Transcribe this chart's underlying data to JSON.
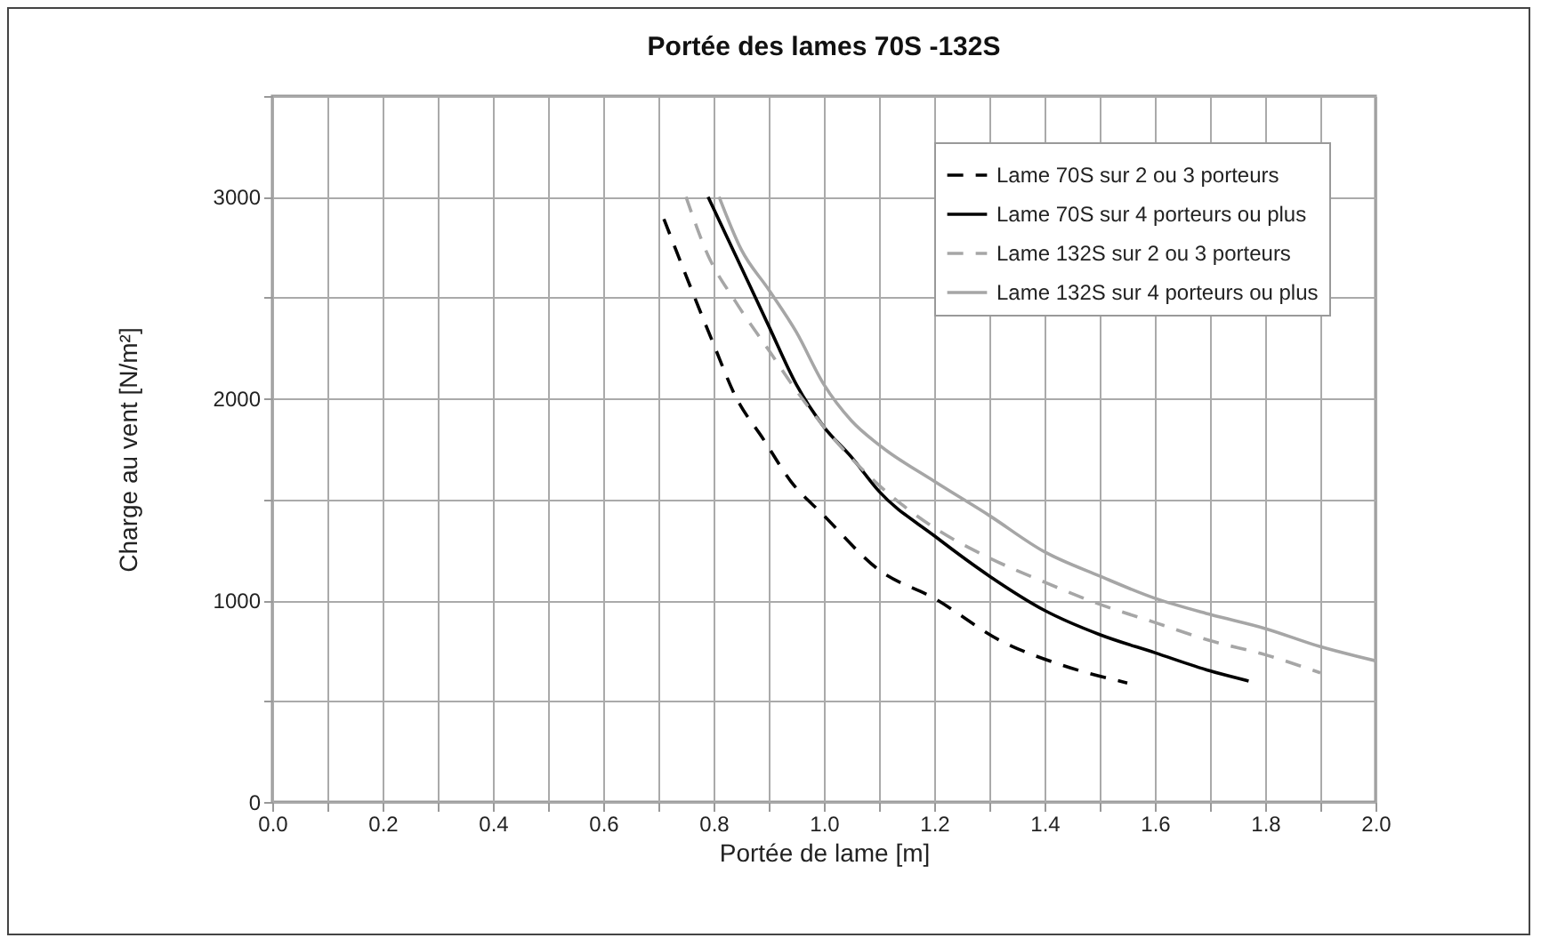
{
  "chart_data": {
    "type": "line",
    "title": "Portée des lames 70S -132S",
    "xlabel": "Portée de lame [m]",
    "ylabel": "Charge au vent [N/m²]",
    "xlim": [
      0,
      2
    ],
    "ylim": [
      0,
      3500
    ],
    "xticks": [
      {
        "value": 0,
        "label": "0.0"
      },
      {
        "value": 0.1,
        "label": null
      },
      {
        "value": 0.2,
        "label": "0.2"
      },
      {
        "value": 0.3,
        "label": null
      },
      {
        "value": 0.4,
        "label": "0.4"
      },
      {
        "value": 0.5,
        "label": null
      },
      {
        "value": 0.6,
        "label": "0.6"
      },
      {
        "value": 0.7,
        "label": null
      },
      {
        "value": 0.8,
        "label": "0.8"
      },
      {
        "value": 0.9,
        "label": null
      },
      {
        "value": 1,
        "label": "1.0"
      },
      {
        "value": 1.1,
        "label": null
      },
      {
        "value": 1.2,
        "label": "1.2"
      },
      {
        "value": 1.3,
        "label": null
      },
      {
        "value": 1.4,
        "label": "1.4"
      },
      {
        "value": 1.5,
        "label": null
      },
      {
        "value": 1.6,
        "label": "1.6"
      },
      {
        "value": 1.7,
        "label": null
      },
      {
        "value": 1.8,
        "label": "1.8"
      },
      {
        "value": 1.9,
        "label": null
      },
      {
        "value": 2,
        "label": "2.0"
      }
    ],
    "yticks": [
      0,
      {
        "value": 500,
        "label": null
      },
      1000,
      {
        "value": 1500,
        "label": null
      },
      2000,
      {
        "value": 2500,
        "label": null
      },
      3000,
      {
        "value": 3500,
        "label": null
      }
    ],
    "grid": true,
    "legend": "top right",
    "marker": "none",
    "series": [
      {
        "name": "Lame 70S sur 2 ou 3 porteurs",
        "color": "#000000",
        "line_style": "dashed",
        "x": [
          0.71,
          0.8,
          0.84,
          0.89,
          0.94,
          1.0,
          1.1,
          1.2,
          1.32,
          1.43,
          1.55
        ],
        "values": [
          2890,
          2270,
          2010,
          1800,
          1590,
          1420,
          1150,
          1010,
          800,
          680,
          590
        ]
      },
      {
        "name": "Lame 70S sur 4 porteurs ou plus",
        "color": "#000000",
        "line_style": "solid",
        "x": [
          0.79,
          0.84,
          0.9,
          0.95,
          1.0,
          1.05,
          1.1,
          1.2,
          1.3,
          1.4,
          1.5,
          1.6,
          1.7,
          1.77
        ],
        "values": [
          3000,
          2710,
          2360,
          2070,
          1860,
          1710,
          1540,
          1320,
          1120,
          950,
          830,
          740,
          650,
          600
        ]
      },
      {
        "name": "Lame 132S sur 2 ou 3 porteurs",
        "color": "#a6a6a6",
        "line_style": "dashed",
        "x": [
          0.75,
          0.79,
          0.84,
          0.9,
          0.95,
          1.0,
          1.1,
          1.2,
          1.3,
          1.4,
          1.5,
          1.6,
          1.7,
          1.8,
          1.9
        ],
        "values": [
          3000,
          2710,
          2480,
          2240,
          2040,
          1860,
          1570,
          1360,
          1210,
          1090,
          980,
          890,
          800,
          730,
          640
        ]
      },
      {
        "name": "Lame 132S sur 4 porteurs ou plus",
        "color": "#a6a6a6",
        "line_style": "solid",
        "x": [
          0.81,
          0.85,
          0.9,
          0.95,
          1.0,
          1.05,
          1.1,
          1.2,
          1.3,
          1.4,
          1.5,
          1.6,
          1.7,
          1.8,
          1.9,
          2.0
        ],
        "values": [
          3000,
          2740,
          2540,
          2330,
          2070,
          1890,
          1770,
          1590,
          1420,
          1240,
          1120,
          1010,
          930,
          860,
          770,
          700
        ]
      }
    ]
  }
}
